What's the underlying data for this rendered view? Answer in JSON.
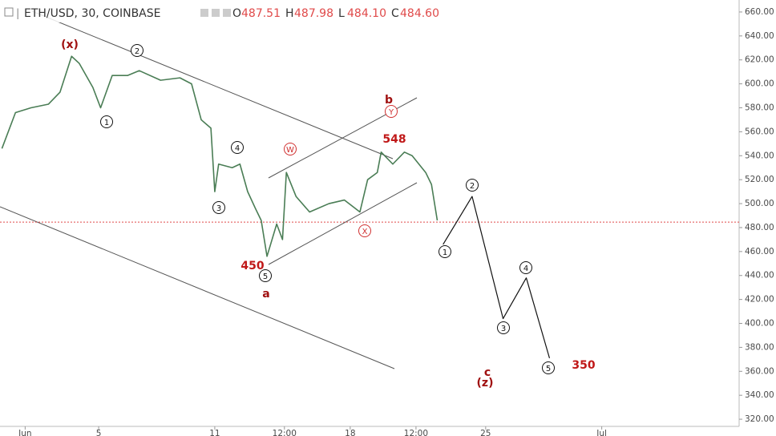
{
  "chart_data": {
    "type": "line",
    "title": "ETH/USD, 30, COINBASE",
    "ohlc": [
      {
        "name": "O",
        "value": 487.51
      },
      {
        "name": "H",
        "value": 487.98
      },
      {
        "name": "L",
        "value": 484.1,
        "value_label": "484.10"
      },
      {
        "name": "C",
        "value": 484.6,
        "value_label": "484.60"
      }
    ],
    "series": [
      {
        "color": "#4a7d55",
        "x": [
          0,
          0.7,
          1.5,
          2.4,
          3,
          3.6,
          4,
          4.7,
          5.1,
          5.7,
          6.5,
          7.1,
          8.2,
          9.2,
          9.8,
          10.3,
          10.8,
          11,
          11.2,
          11.9,
          12.3,
          12.7,
          13.1,
          13.4,
          13.7,
          14.2,
          14.5,
          14.7,
          15.2,
          15.9,
          16.9,
          17.7,
          18.5,
          18.9,
          19.4,
          19.6,
          20.2,
          20.8,
          21.2,
          21.9,
          22.2,
          22.5
        ],
        "values": [
          546,
          576,
          580,
          583,
          593,
          623,
          617,
          597,
          580,
          607,
          607,
          611,
          603,
          605,
          600,
          570,
          563,
          510,
          533,
          530,
          533,
          510,
          496,
          486,
          456,
          483,
          470,
          526,
          506,
          493,
          500,
          503,
          493,
          520,
          526,
          543,
          533,
          543,
          540,
          526,
          516,
          486
        ]
      },
      {
        "color": "#111111",
        "x": [
          22.8,
          24.3,
          25.9,
          27.1,
          28.3
        ],
        "values": [
          466,
          506,
          404,
          438,
          371
        ]
      }
    ],
    "last_price": 484.6,
    "xlim": [
      -0.1,
      38.1
    ],
    "xticks": [
      {
        "value": 1.2,
        "label": "Jun"
      },
      5,
      11,
      {
        "value": 14.6,
        "label": "12:00"
      },
      18,
      {
        "value": 21.4,
        "label": "12:00"
      },
      25,
      {
        "value": 31,
        "label": "Jul"
      }
    ],
    "ylim": [
      306,
      670
    ],
    "yticks": [
      {
        "value": 660,
        "label": "660.00"
      },
      {
        "value": 640,
        "label": "640.00"
      },
      {
        "value": 620,
        "label": "620.00"
      },
      {
        "value": 600,
        "label": "600.00"
      },
      {
        "value": 580,
        "label": "580.00"
      },
      {
        "value": 560,
        "label": "560.00"
      },
      {
        "value": 540,
        "label": "540.00"
      },
      {
        "value": 520,
        "label": "520.00"
      },
      {
        "value": 500,
        "label": "500.00"
      },
      {
        "value": 480,
        "label": "480.00"
      },
      {
        "value": 460,
        "label": "460.00"
      },
      {
        "value": 440,
        "label": "440.00"
      },
      {
        "value": 420,
        "label": "420.00"
      },
      {
        "value": 400,
        "label": "400.00"
      },
      {
        "value": 380,
        "label": "380.00"
      },
      {
        "value": 360,
        "label": "360.00"
      },
      {
        "value": 340,
        "label": "340.00"
      },
      {
        "value": 320,
        "label": "320.00"
      }
    ],
    "annotations": [
      "(x)",
      "2",
      "1",
      "4",
      "3",
      "5",
      "450",
      "a",
      "W",
      "b",
      "Y",
      "548",
      "X",
      "1",
      "2",
      "3",
      "4",
      "5",
      "c",
      "(z)",
      "350"
    ]
  }
}
